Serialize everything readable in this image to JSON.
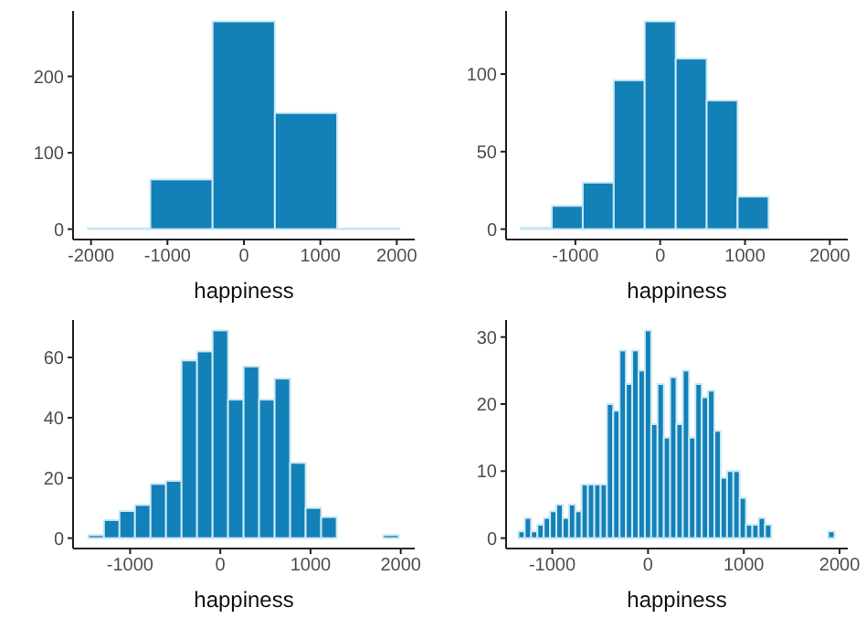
{
  "chart_data": [
    {
      "type": "histogram",
      "xlabel": "happiness",
      "color": "#1380b7",
      "bins": [
        -2040,
        -1225,
        -410,
        405,
        1220,
        2035
      ],
      "values": [
        1,
        65,
        272,
        152,
        1
      ],
      "xlim": [
        -2235,
        2235
      ],
      "xticks": [
        -2000,
        -1000,
        0,
        1000,
        2000
      ],
      "ylim": [
        -13.6,
        285.6
      ],
      "yticks": [
        0,
        100,
        200
      ]
    },
    {
      "type": "histogram",
      "xlabel": "happiness",
      "color": "#1380b7",
      "bins": [
        -1643,
        -1278,
        -913,
        -548,
        -183,
        183,
        548,
        913,
        1278
      ],
      "values": [
        1,
        15,
        30,
        96,
        134,
        110,
        83,
        21
      ],
      "xlim": [
        -1817,
        2211
      ],
      "xticks": [
        -1000,
        0,
        1000,
        2000
      ],
      "ylim": [
        -6.7,
        140.7
      ],
      "yticks": [
        0,
        50,
        100
      ]
    },
    {
      "type": "histogram",
      "xlabel": "happiness",
      "color": "#1380b7",
      "bins": [
        -1462,
        -1290,
        -1118,
        -946,
        -774,
        -602,
        -430,
        -258,
        -86,
        86,
        258,
        430,
        602,
        774,
        946,
        1118,
        1290,
        1462,
        1634,
        1806,
        1978
      ],
      "values": [
        1,
        6,
        9,
        11,
        18,
        19,
        59,
        62,
        69,
        46,
        57,
        46,
        53,
        25,
        10,
        7,
        0,
        0,
        0,
        1
      ],
      "xlim": [
        -1632,
        2155
      ],
      "xticks": [
        -1000,
        0,
        1000,
        2000
      ],
      "ylim": [
        -3.45,
        72.45
      ],
      "yticks": [
        0,
        20,
        40,
        60
      ]
    },
    {
      "type": "histogram",
      "xlabel": "happiness",
      "color": "#1380b7",
      "bins": [
        -1353,
        -1287,
        -1221,
        -1155,
        -1089,
        -1023,
        -957,
        -891,
        -825,
        -759,
        -693,
        -627,
        -561,
        -495,
        -429,
        -363,
        -297,
        -231,
        -165,
        -99,
        -33,
        33,
        99,
        165,
        231,
        297,
        363,
        429,
        495,
        561,
        627,
        693,
        759,
        825,
        891,
        957,
        1023,
        1089,
        1155,
        1221,
        1287,
        1353,
        1419,
        1485,
        1551,
        1617,
        1683,
        1749,
        1815,
        1881,
        1947
      ],
      "values": [
        1,
        3,
        1,
        2,
        3,
        4,
        5,
        3,
        5,
        4,
        8,
        8,
        8,
        8,
        20,
        19,
        28,
        23,
        28,
        25,
        31,
        17,
        23,
        15,
        24,
        17,
        25,
        15,
        23,
        21,
        22,
        16,
        9,
        10,
        10,
        6,
        2,
        2,
        3,
        2,
        0,
        0,
        0,
        0,
        0,
        0,
        0,
        0,
        0,
        1
      ],
      "xlim": [
        -1482,
        2085
      ],
      "xticks": [
        -1000,
        0,
        1000,
        2000
      ],
      "ylim": [
        -1.55,
        32.55
      ],
      "yticks": [
        0,
        10,
        20,
        30
      ]
    }
  ]
}
